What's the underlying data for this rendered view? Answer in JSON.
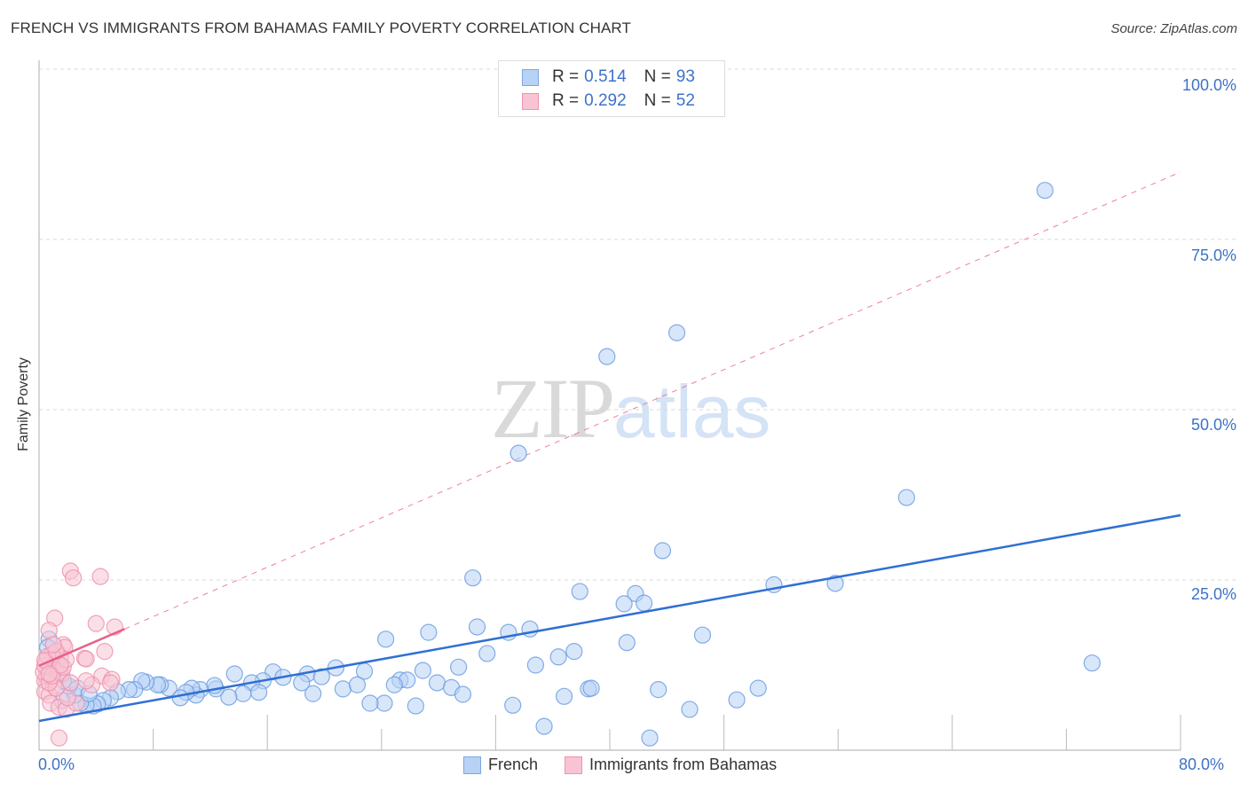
{
  "header": {
    "title": "FRENCH VS IMMIGRANTS FROM BAHAMAS FAMILY POVERTY CORRELATION CHART",
    "source": "Source: ZipAtlas.com"
  },
  "watermark": {
    "zip": "ZIP",
    "atlas": "atlas"
  },
  "legend": {
    "rows": [
      {
        "r_label": "R =",
        "r_value": "0.514",
        "n_label": "N =",
        "n_value": "93",
        "color": "#b8d2f5"
      },
      {
        "r_label": "R =",
        "r_value": "0.292",
        "n_label": "N =",
        "n_value": "52",
        "color": "#f8c4d3"
      }
    ]
  },
  "bottom_legend": [
    {
      "label": "French",
      "color": "#b8d2f5"
    },
    {
      "label": "Immigrants from Bahamas",
      "color": "#f8c4d3"
    }
  ],
  "axes": {
    "ylabel": "Family Poverty",
    "y_ticks": [
      "100.0%",
      "75.0%",
      "50.0%",
      "25.0%"
    ],
    "x_ticks": [
      "0.0%",
      "80.0%"
    ]
  },
  "colors": {
    "french_fill": "#b8d2f5",
    "french_stroke": "#6f9fe0",
    "french_line": "#2f6fd3",
    "bahamas_fill": "#f8c4d3",
    "bahamas_stroke": "#ee93ae",
    "bahamas_line": "#e8608a",
    "tick_label": "#3d72c8"
  },
  "chart_data": {
    "type": "scatter",
    "title": "FRENCH VS IMMIGRANTS FROM BAHAMAS FAMILY POVERTY CORRELATION CHART",
    "xlabel": "",
    "ylabel": "Family Poverty",
    "xlim": [
      0,
      80
    ],
    "ylim": [
      0,
      100
    ],
    "x_tick_labels": [
      "0.0%",
      "80.0%"
    ],
    "y_tick_labels": [
      "25.0%",
      "50.0%",
      "75.0%",
      "100.0%"
    ],
    "grid": "horizontal dashed at 25/50/75/100",
    "legend_position": "top-center",
    "series": [
      {
        "name": "French",
        "R": 0.514,
        "N": 93,
        "trend": {
          "x0": 0,
          "y0": 4.3,
          "x1": 80,
          "y1": 34.5,
          "style": "solid"
        },
        "points": [
          [
            70.5,
            82.2
          ],
          [
            44.7,
            61.3
          ],
          [
            39.8,
            57.8
          ],
          [
            33.6,
            43.6
          ],
          [
            60.8,
            37.1
          ],
          [
            43.7,
            29.3
          ],
          [
            30.4,
            25.3
          ],
          [
            51.5,
            24.3
          ],
          [
            55.8,
            24.5
          ],
          [
            37.9,
            23.3
          ],
          [
            41.8,
            23.0
          ],
          [
            41.0,
            21.5
          ],
          [
            42.4,
            21.6
          ],
          [
            73.8,
            12.8
          ],
          [
            30.7,
            18.1
          ],
          [
            27.3,
            17.3
          ],
          [
            32.9,
            17.3
          ],
          [
            34.4,
            17.8
          ],
          [
            24.3,
            16.3
          ],
          [
            41.2,
            15.8
          ],
          [
            46.5,
            16.9
          ],
          [
            31.4,
            14.2
          ],
          [
            37.5,
            14.5
          ],
          [
            36.4,
            13.7
          ],
          [
            34.8,
            12.5
          ],
          [
            29.4,
            12.2
          ],
          [
            26.9,
            11.7
          ],
          [
            20.8,
            12.1
          ],
          [
            22.8,
            11.6
          ],
          [
            16.4,
            11.5
          ],
          [
            13.7,
            11.2
          ],
          [
            18.8,
            11.2
          ],
          [
            17.1,
            10.7
          ],
          [
            19.8,
            10.8
          ],
          [
            24.2,
            6.9
          ],
          [
            23.2,
            6.9
          ],
          [
            25.3,
            10.3
          ],
          [
            25.8,
            10.3
          ],
          [
            21.3,
            9.0
          ],
          [
            22.3,
            9.6
          ],
          [
            24.9,
            9.6
          ],
          [
            27.9,
            9.9
          ],
          [
            28.9,
            9.2
          ],
          [
            29.7,
            8.2
          ],
          [
            26.4,
            6.5
          ],
          [
            33.2,
            6.6
          ],
          [
            35.4,
            3.5
          ],
          [
            36.8,
            7.9
          ],
          [
            38.5,
            9.0
          ],
          [
            38.7,
            9.1
          ],
          [
            43.4,
            8.9
          ],
          [
            42.8,
            1.8
          ],
          [
            45.6,
            6.0
          ],
          [
            48.9,
            7.4
          ],
          [
            50.4,
            9.1
          ],
          [
            18.4,
            9.9
          ],
          [
            19.2,
            8.3
          ],
          [
            15.7,
            10.2
          ],
          [
            14.9,
            9.9
          ],
          [
            15.4,
            8.5
          ],
          [
            14.3,
            8.3
          ],
          [
            13.3,
            7.8
          ],
          [
            12.4,
            9.0
          ],
          [
            12.3,
            9.5
          ],
          [
            11.3,
            8.9
          ],
          [
            11.0,
            8.1
          ],
          [
            10.7,
            9.1
          ],
          [
            10.3,
            8.5
          ],
          [
            9.9,
            7.7
          ],
          [
            9.1,
            9.1
          ],
          [
            8.5,
            9.6
          ],
          [
            8.3,
            9.6
          ],
          [
            7.5,
            10.0
          ],
          [
            7.2,
            10.2
          ],
          [
            6.7,
            8.9
          ],
          [
            6.3,
            8.9
          ],
          [
            5.5,
            8.6
          ],
          [
            5.0,
            7.7
          ],
          [
            4.5,
            7.3
          ],
          [
            4.1,
            6.8
          ],
          [
            3.8,
            6.5
          ],
          [
            3.3,
            6.6
          ],
          [
            2.9,
            6.9
          ],
          [
            2.5,
            8.1
          ],
          [
            2.1,
            9.4
          ],
          [
            1.7,
            10.2
          ],
          [
            1.3,
            11.2
          ],
          [
            0.9,
            13.2
          ],
          [
            0.7,
            16.3
          ],
          [
            0.6,
            15.1
          ],
          [
            1.6,
            7.3
          ],
          [
            2.7,
            9.1
          ],
          [
            3.5,
            8.3
          ]
        ]
      },
      {
        "name": "Immigrants from Bahamas",
        "R": 0.292,
        "N": 52,
        "trend": {
          "x0": 0,
          "y0": 12.4,
          "x1": 6.0,
          "y1": 17.8,
          "style": "solid",
          "extended": {
            "x1": 80,
            "y1": 84.9,
            "style": "dashed"
          }
        },
        "points": [
          [
            2.2,
            26.3
          ],
          [
            2.4,
            25.3
          ],
          [
            4.3,
            25.5
          ],
          [
            1.1,
            19.4
          ],
          [
            4.0,
            18.6
          ],
          [
            5.3,
            18.1
          ],
          [
            0.7,
            17.6
          ],
          [
            1.7,
            15.5
          ],
          [
            1.8,
            15.1
          ],
          [
            4.6,
            14.5
          ],
          [
            3.2,
            13.5
          ],
          [
            3.3,
            13.4
          ],
          [
            1.5,
            13.7
          ],
          [
            0.9,
            14.1
          ],
          [
            1.2,
            13.2
          ],
          [
            0.5,
            13.0
          ],
          [
            1.0,
            12.5
          ],
          [
            0.7,
            11.8
          ],
          [
            1.4,
            11.5
          ],
          [
            0.5,
            10.8
          ],
          [
            0.9,
            10.4
          ],
          [
            0.4,
            10.2
          ],
          [
            1.1,
            11.8
          ],
          [
            1.6,
            11.2
          ],
          [
            1.7,
            12.2
          ],
          [
            0.3,
            11.5
          ],
          [
            0.4,
            12.4
          ],
          [
            4.4,
            10.9
          ],
          [
            5.1,
            10.4
          ],
          [
            3.7,
            9.6
          ],
          [
            5.0,
            9.9
          ],
          [
            3.3,
            10.2
          ],
          [
            1.0,
            9.5
          ],
          [
            0.4,
            8.6
          ],
          [
            0.7,
            8.1
          ],
          [
            0.8,
            6.9
          ],
          [
            1.4,
            6.3
          ],
          [
            1.9,
            6.0
          ],
          [
            1.4,
            1.8
          ],
          [
            2.6,
            6.9
          ],
          [
            2.0,
            7.7
          ],
          [
            1.2,
            9.1
          ],
          [
            0.7,
            9.9
          ],
          [
            0.6,
            13.8
          ],
          [
            0.4,
            13.2
          ],
          [
            0.9,
            10.9
          ],
          [
            1.9,
            13.3
          ],
          [
            1.5,
            12.5
          ],
          [
            0.7,
            11.2
          ],
          [
            1.2,
            14.5
          ],
          [
            1.0,
            15.5
          ],
          [
            2.2,
            9.9
          ]
        ]
      }
    ]
  }
}
